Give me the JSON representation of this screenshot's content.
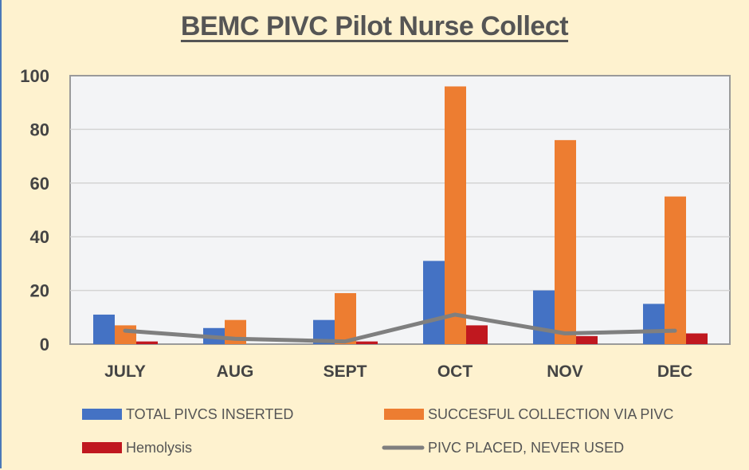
{
  "chart_data": {
    "type": "bar",
    "title": "BEMC PIVC Pilot Nurse Collect",
    "xlabel": "",
    "ylabel": "",
    "ylim": [
      0,
      100
    ],
    "yticks": [
      "0",
      "20",
      "40",
      "60",
      "80",
      "100"
    ],
    "grid": true,
    "legend_placement": "bottom",
    "categories": [
      "JULY",
      "AUG",
      "SEPT",
      "OCT",
      "NOV",
      "DEC"
    ],
    "series": [
      {
        "name": "TOTAL PIVCS INSERTED",
        "kind": "bar",
        "color": "#4472c4",
        "values": [
          11,
          6,
          9,
          31,
          20,
          15
        ]
      },
      {
        "name": "SUCCESFUL COLLECTION VIA PIVC",
        "kind": "bar",
        "color": "#ed7d31",
        "values": [
          7,
          9,
          19,
          96,
          76,
          55
        ]
      },
      {
        "name": "Hemolysis",
        "kind": "bar",
        "color": "#c0181f",
        "values": [
          1,
          0,
          1,
          7,
          3,
          4
        ]
      },
      {
        "name": "PIVC PLACED, NEVER USED",
        "kind": "line",
        "color": "#7f7f7f",
        "values": [
          5,
          2,
          1,
          11,
          4,
          5
        ]
      }
    ]
  }
}
